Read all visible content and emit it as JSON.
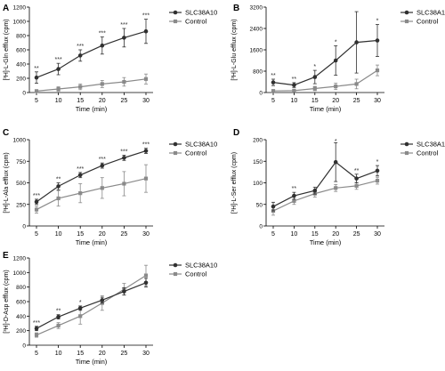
{
  "figure": {
    "colors": {
      "slc": "#303030",
      "control": "#8a8a8a",
      "axis": "#000000",
      "star": "#303030"
    }
  },
  "chart_data": [
    {
      "panel": "A",
      "type": "line",
      "ylabel": "[³H]-L-Gln efflux (cpm)",
      "xlabel": "Time (min)",
      "x": [
        5,
        10,
        15,
        20,
        25,
        30
      ],
      "xlim": [
        5,
        30
      ],
      "ylim": [
        0,
        1200
      ],
      "yticks": [
        0,
        200,
        400,
        600,
        800,
        1000,
        1200
      ],
      "series": [
        {
          "name": "SLC38A10",
          "values": [
            210,
            330,
            520,
            660,
            770,
            860
          ],
          "errors": [
            80,
            80,
            80,
            120,
            130,
            170
          ]
        },
        {
          "name": "Control",
          "values": [
            20,
            50,
            80,
            120,
            150,
            190
          ],
          "errors": [
            20,
            30,
            40,
            50,
            60,
            70
          ]
        }
      ],
      "annotations": [
        "**",
        "***",
        "***",
        "***",
        "***",
        "***"
      ],
      "legend": "top-right"
    },
    {
      "panel": "B",
      "type": "line",
      "ylabel": "[³H]-L-Glu efflux (cpm)",
      "xlabel": "Time (min)",
      "x": [
        5,
        10,
        15,
        20,
        25,
        30
      ],
      "xlim": [
        5,
        30
      ],
      "ylim": [
        0,
        3200
      ],
      "yticks": [
        0,
        800,
        1600,
        2400,
        3200
      ],
      "series": [
        {
          "name": "SLC38A10",
          "values": [
            380,
            280,
            580,
            1200,
            1880,
            1950
          ],
          "errors": [
            120,
            90,
            250,
            550,
            1150,
            600
          ]
        },
        {
          "name": "Control",
          "values": [
            60,
            70,
            150,
            230,
            320,
            830
          ],
          "errors": [
            40,
            40,
            80,
            120,
            180,
            200
          ]
        }
      ],
      "annotations": [
        "**",
        "**",
        "*",
        "*",
        "",
        "*"
      ],
      "legend": "top-right"
    },
    {
      "panel": "C",
      "type": "line",
      "ylabel": "[³H]-L-Ala efflux (cpm)",
      "xlabel": "Time (min)",
      "x": [
        5,
        10,
        15,
        20,
        25,
        30
      ],
      "xlim": [
        5,
        30
      ],
      "ylim": [
        0,
        1000
      ],
      "yticks": [
        0,
        250,
        500,
        750,
        1000
      ],
      "series": [
        {
          "name": "SLC38A10",
          "values": [
            280,
            460,
            590,
            700,
            790,
            870
          ],
          "errors": [
            30,
            40,
            30,
            30,
            30,
            30
          ]
        },
        {
          "name": "Control",
          "values": [
            190,
            320,
            380,
            440,
            490,
            550
          ],
          "errors": [
            40,
            90,
            110,
            120,
            140,
            160
          ]
        }
      ],
      "annotations": [
        "***",
        "**",
        "***",
        "***",
        "***",
        "***"
      ],
      "legend": "top-right"
    },
    {
      "panel": "D",
      "type": "line",
      "ylabel": "[³H]-L-Ser efflux (cpm)",
      "xlabel": "Time (min)",
      "x": [
        5,
        10,
        15,
        20,
        25,
        30
      ],
      "xlim": [
        5,
        30
      ],
      "ylim": [
        0,
        200
      ],
      "yticks": [
        0,
        50,
        100,
        150,
        200
      ],
      "series": [
        {
          "name": "SLC38A10",
          "values": [
            45,
            70,
            82,
            148,
            110,
            128
          ],
          "errors": [
            10,
            8,
            8,
            45,
            10,
            12
          ]
        },
        {
          "name": "Control",
          "values": [
            35,
            58,
            75,
            88,
            93,
            105
          ],
          "errors": [
            10,
            8,
            8,
            8,
            8,
            8
          ]
        }
      ],
      "annotations": [
        "",
        "**",
        "",
        "*",
        "**",
        "*"
      ],
      "legend": "top-right"
    },
    {
      "panel": "E",
      "type": "line",
      "ylabel": "[³H]-D-Asp efflux (cpm)",
      "xlabel": "Time (min)",
      "x": [
        5,
        10,
        15,
        20,
        25,
        30
      ],
      "xlim": [
        5,
        30
      ],
      "ylim": [
        0,
        1200
      ],
      "yticks": [
        0,
        200,
        400,
        600,
        800,
        1000,
        1200
      ],
      "series": [
        {
          "name": "SLC38A10",
          "values": [
            230,
            390,
            510,
            620,
            740,
            860
          ],
          "errors": [
            30,
            30,
            30,
            40,
            50,
            60
          ]
        },
        {
          "name": "Control",
          "values": [
            140,
            270,
            400,
            580,
            770,
            960
          ],
          "errors": [
            30,
            40,
            110,
            100,
            80,
            140
          ]
        }
      ],
      "annotations": [
        "***",
        "**",
        "*",
        "",
        "",
        ""
      ],
      "legend": "top-right"
    }
  ]
}
